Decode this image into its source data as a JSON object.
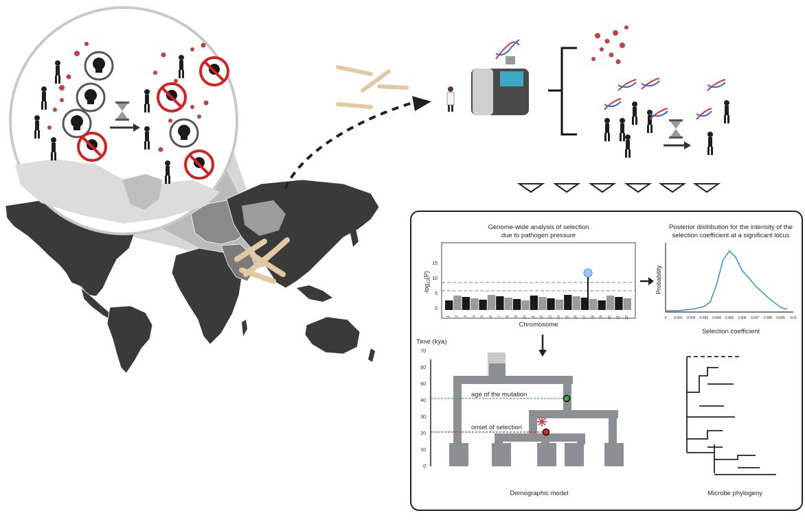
{
  "panel": {
    "manhattan": {
      "title_line1": "Genome-wide analysis of selection",
      "title_line2": "due to pathogen pressure",
      "ylabel_prefix": "-log",
      "ylabel_sub": "10",
      "ylabel_suffix": "(P)",
      "xlabel": "Chromosome",
      "yticks": [
        "0",
        "5",
        "10",
        "15"
      ],
      "chromosomes": [
        "1",
        "2",
        "3",
        "4",
        "5",
        "6",
        "7",
        "8",
        "9",
        "10",
        "11",
        "12",
        "13",
        "14",
        "15",
        "16",
        "17",
        "18",
        "19",
        "20",
        "21",
        "22"
      ]
    },
    "posterior": {
      "title_line1": "Posterior distribution for the intensity of the",
      "title_line2": "selection coefficient at a significant locus",
      "ylabel": "Probability",
      "xlabel": "Selection coefficient",
      "xticks": [
        "0",
        "0.001",
        "0.002",
        "0.003",
        "0.004",
        "0.005",
        "0.006",
        "0.007",
        "0.008",
        "0.009",
        "0.01"
      ],
      "curve_color": "#3a95d6"
    },
    "demographic": {
      "time_label": "Time (kya)",
      "yticks": [
        "0",
        "10",
        "20",
        "30",
        "40",
        "50",
        "60",
        "70"
      ],
      "age_label": "age of the mutation",
      "onset_label": "onset of selection",
      "caption": "Demographic model",
      "age_color": "#2db34a",
      "onset_color": "#d42a2a"
    },
    "phylogeny": {
      "caption": "Microbe phylogeny"
    }
  },
  "chart_data": {
    "type": "line",
    "title": "Posterior distribution for the intensity of the selection coefficient at a significant locus",
    "xlabel": "Selection coefficient",
    "ylabel": "Probability",
    "xlim": [
      0,
      0.01
    ],
    "x": [
      0.0,
      0.001,
      0.002,
      0.003,
      0.0035,
      0.004,
      0.0045,
      0.005,
      0.0055,
      0.006,
      0.0065,
      0.007,
      0.008,
      0.009,
      0.0095
    ],
    "y": [
      0.02,
      0.02,
      0.04,
      0.08,
      0.15,
      0.42,
      0.78,
      0.92,
      0.82,
      0.62,
      0.52,
      0.4,
      0.22,
      0.07,
      0.04
    ]
  }
}
